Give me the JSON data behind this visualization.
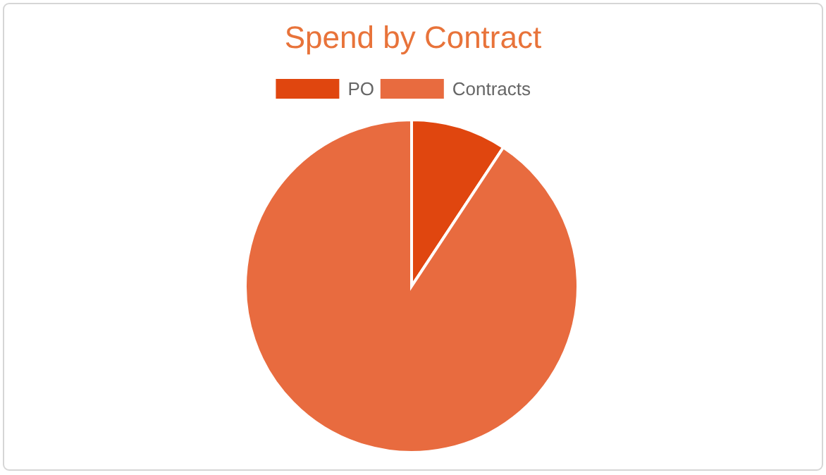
{
  "chart_data": {
    "type": "pie",
    "title": "Spend by Contract",
    "categories": [
      "PO",
      "Contracts"
    ],
    "values": [
      9.3,
      90.7
    ],
    "colors": [
      "#e0460f",
      "#e86b3f"
    ],
    "legend": "top"
  }
}
